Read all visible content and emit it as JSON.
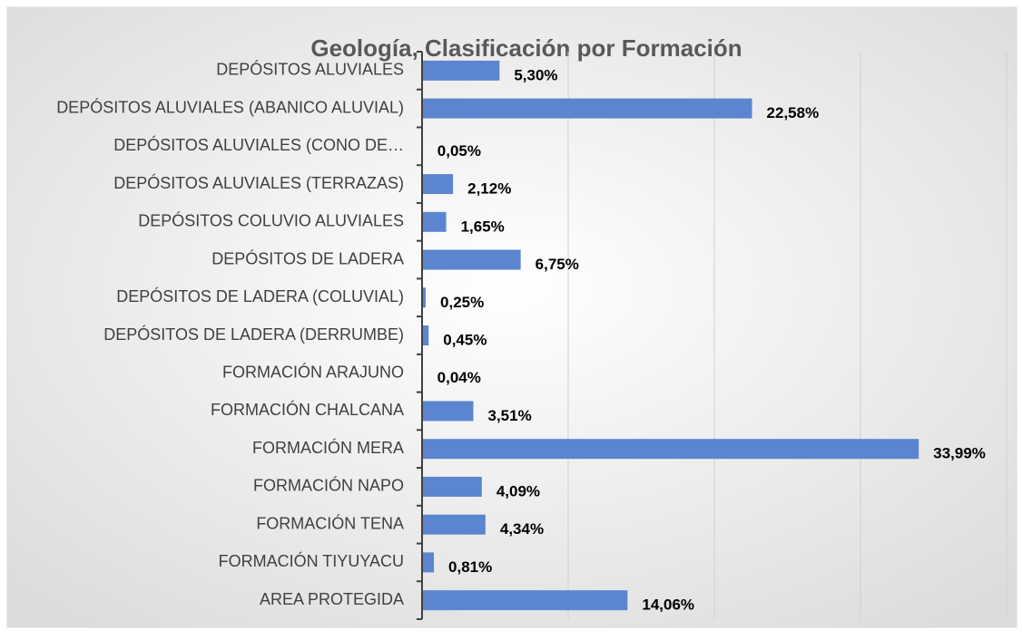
{
  "chart_data": {
    "type": "bar",
    "orientation": "horizontal",
    "title": "Geología, Clasificación por Formación",
    "categories": [
      "DEPÓSITOS ALUVIALES",
      "DEPÓSITOS ALUVIALES (ABANICO ALUVIAL)",
      "DEPÓSITOS ALUVIALES (CONO DE…",
      "DEPÓSITOS ALUVIALES (TERRAZAS)",
      "DEPÓSITOS COLUVIO ALUVIALES",
      "DEPÓSITOS DE LADERA",
      "DEPÓSITOS DE LADERA (COLUVIAL)",
      "DEPÓSITOS DE LADERA (DERRUMBE)",
      "FORMACIÓN ARAJUNO",
      "FORMACIÓN CHALCANA",
      "FORMACIÓN MERA",
      "FORMACIÓN NAPO",
      "FORMACIÓN TENA",
      "FORMACIÓN TIYUYACU",
      "AREA PROTEGIDA"
    ],
    "values": [
      5.3,
      22.58,
      0.05,
      2.12,
      1.65,
      6.75,
      0.25,
      0.45,
      0.04,
      3.51,
      33.99,
      4.09,
      4.34,
      0.81,
      14.06
    ],
    "value_labels": [
      "5,30%",
      "22,58%",
      "0,05%",
      "2,12%",
      "1,65%",
      "6,75%",
      "0,25%",
      "0,45%",
      "0,04%",
      "3,51%",
      "33,99%",
      "4,09%",
      "4,34%",
      "0,81%",
      "14,06%"
    ],
    "color": "#5b86cf",
    "xlim": [
      0,
      40
    ],
    "xticks": [
      0,
      10,
      20,
      30,
      40
    ],
    "grid": true
  }
}
